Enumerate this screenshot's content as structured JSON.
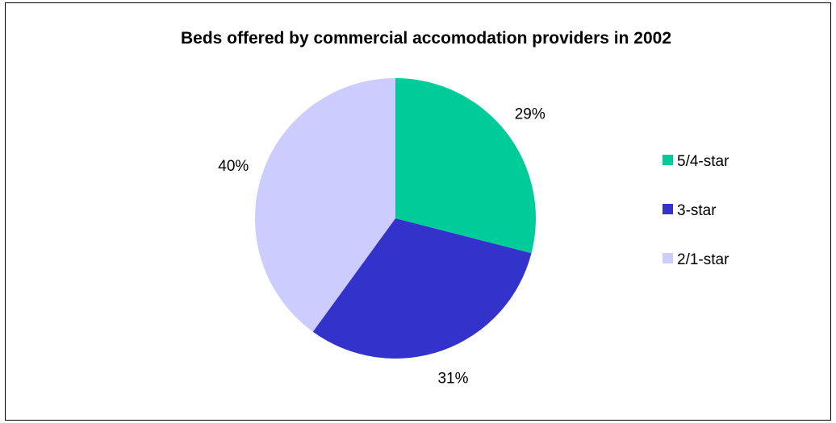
{
  "chart_data": {
    "type": "pie",
    "title": "Beds offered by commercial accomodation providers in 2002",
    "categories": [
      "5/4-star",
      "3-star",
      "2/1-star"
    ],
    "values": [
      29,
      31,
      40
    ],
    "value_labels": [
      "29%",
      "31%",
      "40%"
    ],
    "colors": [
      "#00cc99",
      "#3333cc",
      "#ccccff"
    ],
    "legend_position": "right",
    "start_angle": "12 o'clock",
    "direction": "clockwise"
  }
}
